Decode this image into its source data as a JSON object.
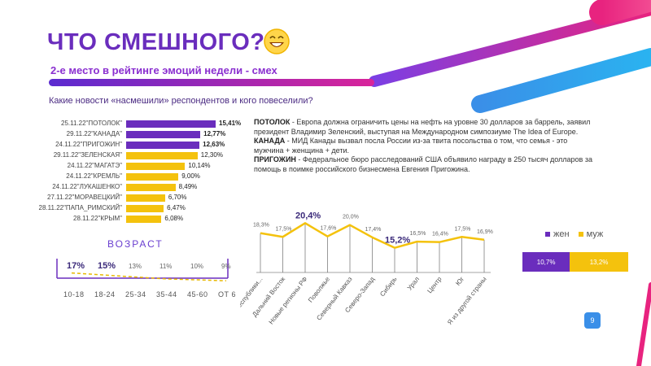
{
  "slide": {
    "title": "ЧТО СМЕШНОГО?",
    "subtitle_prefix": "2-е место в рейтинге эмоций недели - ",
    "subtitle_accent": "смех",
    "question": "Какие новости «насмешили» респондентов и кого повеселили?",
    "page_number": "9",
    "colors": {
      "purple": "#6a2dbd",
      "yellow": "#f4c20d",
      "pink": "#e8237f",
      "blue": "#3a8fe8"
    }
  },
  "news": [
    {
      "head": "ПОТОЛОК",
      "text": " - Европа должна ограничить цены на нефть на уровне 30 долларов за баррель, заявил президент Владимир Зеленский, выступая на Международном симпозиуме The Idea of Europe."
    },
    {
      "head": "КАНАДА",
      "text": " - МИД Канады вызвал посла России из-за твита посольства о том, что семья - это мужчина + женщина + дети."
    },
    {
      "head": "ПРИГОЖИН",
      "text": " - Федеральное бюро расследований США объявило награду в 250 тысяч долларов за помощь в поимке российского бизнесмена Евгения Пригожина."
    }
  ],
  "chart_data": [
    {
      "type": "bar",
      "orientation": "horizontal",
      "categories": [
        "25.11.22\"ПОТОЛОК\"",
        "29.11.22\"КАНАДА\"",
        "24.11.22\"ПРИГОЖИН\"",
        "29.11.22\"ЗЕЛЕНСКАЯ\"",
        "24.11.22\"МАГАТЭ\"",
        "24.11.22\"КРЕМЛЬ\"",
        "24.11.22\"ЛУКАШЕНКО\"",
        "27.11.22\"МОРАВЕЦКИЙ\"",
        "28.11.22\"ПАПА_РИМСКИЙ\"",
        "28.11.22\"КРЫМ\""
      ],
      "values": [
        15.41,
        12.77,
        12.63,
        12.3,
        10.14,
        9.0,
        8.49,
        6.7,
        6.47,
        6.08
      ],
      "labels": [
        "15,41%",
        "12,77%",
        "12,63%",
        "12,30%",
        "10,14%",
        "9,00%",
        "8,49%",
        "6,70%",
        "6,47%",
        "6,08%"
      ],
      "bar_colors": [
        "#6a2dbd",
        "#6a2dbd",
        "#6a2dbd",
        "#f4c20d",
        "#f4c20d",
        "#f4c20d",
        "#f4c20d",
        "#f4c20d",
        "#f4c20d",
        "#f4c20d"
      ]
    },
    {
      "type": "line",
      "title": "ВОЗРАСТ",
      "categories": [
        "10-18",
        "18-24",
        "25-34",
        "35-44",
        "45-60",
        "ОТ 60"
      ],
      "values": [
        17,
        15,
        13,
        11,
        10,
        9
      ],
      "labels": [
        "17%",
        "15%",
        "13%",
        "11%",
        "10%",
        "9%"
      ],
      "trend": "dashed"
    },
    {
      "type": "line",
      "categories": [
        "Бывшие республики...",
        "Дальний Восток",
        "Новые регионы РФ",
        "Поволжье",
        "Северный Кавказ",
        "Северо-Запад",
        "Сибирь",
        "Урал",
        "Центр",
        "Юг",
        "Я из другой страны"
      ],
      "values": [
        18.3,
        17.5,
        20.4,
        17.6,
        20.0,
        17.4,
        15.2,
        16.5,
        16.4,
        17.5,
        16.9
      ],
      "labels": [
        "18,3%",
        "17,5%",
        "20,4%",
        "17,6%",
        "20,0%",
        "17,4%",
        "15,2%",
        "16,5%",
        "16,4%",
        "17,5%",
        "16,9%"
      ],
      "ylim": [
        10,
        22
      ]
    },
    {
      "type": "bar",
      "orientation": "stacked-horizontal",
      "series": [
        {
          "name": "жен",
          "value": 10.7,
          "label": "10,7%",
          "color": "#6a2dbd"
        },
        {
          "name": "муж",
          "value": 13.2,
          "label": "13,2%",
          "color": "#f4c20d"
        }
      ]
    }
  ]
}
